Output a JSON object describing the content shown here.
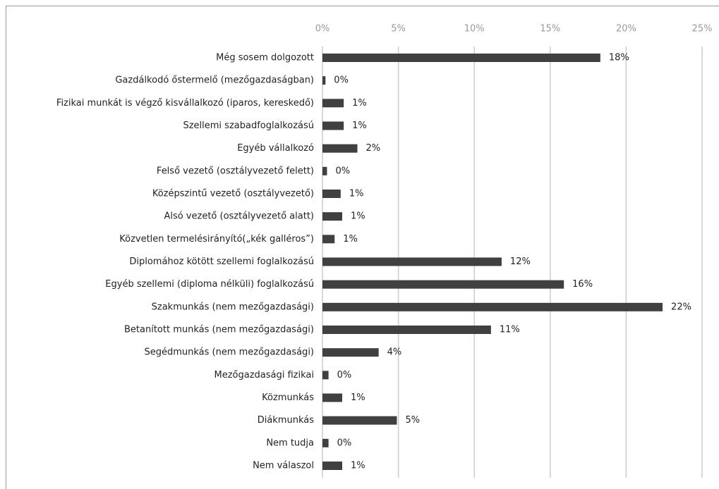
{
  "chart_data": {
    "type": "bar",
    "orientation": "horizontal",
    "categories": [
      "Még sosem dolgozott",
      "Gazdálkodó őstermelő (mezőgazdaságban)",
      "Fizikai munkát is végző kisvállalkozó (iparos, kereskedő)",
      "Szellemi szabadfoglalkozású",
      "Egyéb vállalkozó",
      "Felső vezető (osztályvezető felett)",
      "Középszintű vezető (osztályvezető)",
      "Alsó vezető (osztályvezető alatt)",
      "Közvetlen termelésirányító(„kék galléros”)",
      "Diplomához kötött szellemi foglalkozású",
      "Egyéb szellemi (diploma nélküli) foglalkozású",
      "Szakmunkás (nem mezőgazdasági)",
      "Betanított munkás (nem mezőgazdasági)",
      "Segédmunkás (nem mezőgazdasági)",
      "Mezőgazdasági fizikai",
      "Közmunkás",
      "Diákmunkás",
      "Nem tudja",
      "Nem válaszol"
    ],
    "values": [
      18.3,
      0.2,
      1.4,
      1.4,
      2.3,
      0.3,
      1.2,
      1.3,
      0.8,
      11.8,
      15.9,
      22.4,
      11.1,
      3.7,
      0.4,
      1.3,
      4.9,
      0.4,
      1.3
    ],
    "value_labels": [
      "18%",
      "0%",
      "1%",
      "1%",
      "2%",
      "0%",
      "1%",
      "1%",
      "1%",
      "12%",
      "16%",
      "22%",
      "11%",
      "4%",
      "0%",
      "1%",
      "5%",
      "0%",
      "1%"
    ],
    "color": "#404040",
    "xlim": [
      0,
      25
    ],
    "xticks": [
      {
        "value": 0,
        "label": "0%"
      },
      {
        "value": 5,
        "label": "5%"
      },
      {
        "value": 10,
        "label": "10%"
      },
      {
        "value": 15,
        "label": "15%"
      },
      {
        "value": 20,
        "label": "20%"
      },
      {
        "value": 25,
        "label": "25%"
      }
    ],
    "grid": true
  }
}
